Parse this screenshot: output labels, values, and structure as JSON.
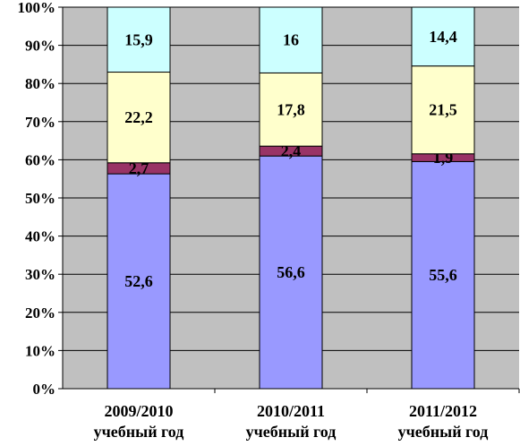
{
  "chart_data": {
    "type": "bar",
    "stacked": true,
    "percent_stacked": true,
    "categories": [
      [
        "2009/2010",
        "учебный год"
      ],
      [
        "2010/2011",
        "учебный год"
      ],
      [
        "2011/2012",
        "учебный год"
      ]
    ],
    "series": [
      {
        "values": [
          52.6,
          56.6,
          55.6
        ],
        "color": "#9999ff",
        "labels": [
          "52,6",
          "56,6",
          "55,6"
        ]
      },
      {
        "values": [
          2.7,
          2.4,
          1.9
        ],
        "color": "#993366",
        "labels": [
          "2,7",
          "2,4",
          "1,9"
        ]
      },
      {
        "values": [
          22.2,
          17.8,
          21.5
        ],
        "color": "#ffffcc",
        "labels": [
          "22,2",
          "17,8",
          "21,5"
        ]
      },
      {
        "values": [
          15.9,
          16,
          14.4
        ],
        "color": "#ccffff",
        "labels": [
          "15,9",
          "16",
          "14,4"
        ]
      }
    ],
    "y_ticks": [
      "0%",
      "10%",
      "20%",
      "30%",
      "40%",
      "50%",
      "60%",
      "70%",
      "80%",
      "90%",
      "100%"
    ],
    "ylim": [
      0,
      100
    ],
    "plot_background": "#c0c0c0",
    "grid": true,
    "legend": "none"
  }
}
